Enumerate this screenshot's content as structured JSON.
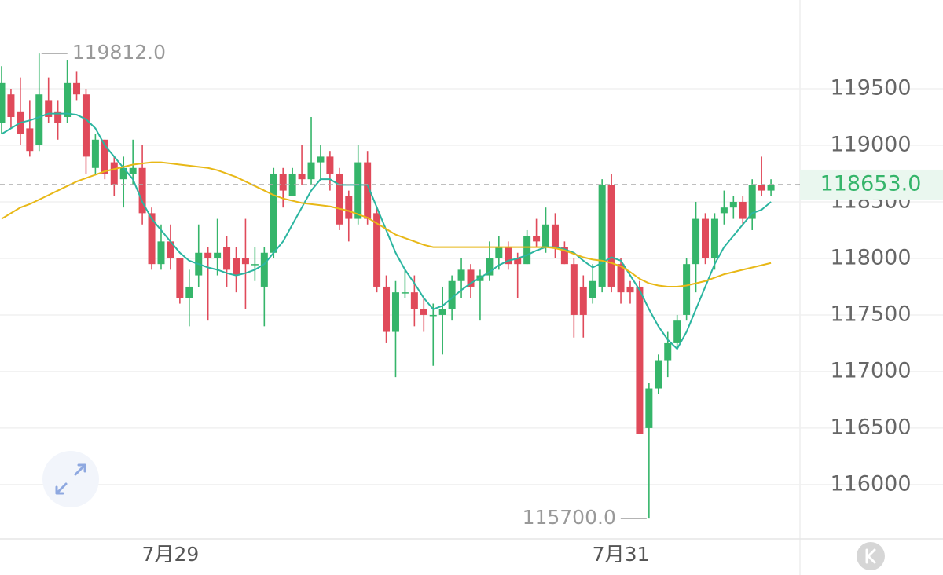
{
  "chart_data": {
    "type": "candlestick",
    "categories": [
      null,
      null,
      null,
      null,
      null,
      null,
      null,
      null,
      null,
      null,
      null,
      null,
      null,
      null,
      null,
      null,
      null,
      null,
      "7月29",
      null,
      null,
      null,
      null,
      null,
      null,
      null,
      null,
      null,
      null,
      null,
      null,
      null,
      null,
      null,
      null,
      null,
      null,
      null,
      null,
      null,
      null,
      null,
      null,
      null,
      null,
      null,
      null,
      null,
      null,
      null,
      null,
      null,
      null,
      null,
      null,
      null,
      null,
      null,
      null,
      null,
      null,
      null,
      null,
      null,
      null,
      null,
      "7月31",
      null,
      null,
      null,
      null,
      null,
      null,
      null,
      null,
      null,
      null,
      null,
      null,
      null,
      null,
      null,
      null
    ],
    "open": [
      119200,
      119450,
      119300,
      119150,
      119000,
      119400,
      119300,
      119250,
      119550,
      119450,
      118800,
      119050,
      118850,
      118700,
      118750,
      118800,
      118400,
      117950,
      118150,
      118000,
      117650,
      117850,
      118050,
      118000,
      118100,
      118000,
      118000,
      117950,
      117750,
      118050,
      118750,
      118550,
      118750,
      118700,
      118850,
      118900,
      118750,
      118550,
      118350,
      118850,
      118400,
      117750,
      117350,
      117700,
      117700,
      117550,
      117500,
      117500,
      117550,
      117800,
      117900,
      117800,
      117850,
      118000,
      118100,
      118000,
      117950,
      118200,
      118100,
      118300,
      118100,
      117950,
      117750,
      117650,
      117750,
      118650,
      117950,
      117750,
      117750,
      116500,
      116850,
      117100,
      117250,
      117500,
      117950,
      118350,
      118000,
      118400,
      118450,
      118500,
      118350,
      118650,
      118600
    ],
    "high": [
      119700,
      119500,
      119600,
      119400,
      119812,
      119600,
      119400,
      119750,
      119650,
      119500,
      119100,
      119050,
      118900,
      118900,
      119050,
      119000,
      118450,
      118300,
      118300,
      118000,
      117900,
      118300,
      118100,
      118350,
      118200,
      118100,
      118350,
      118100,
      118100,
      118800,
      118800,
      118800,
      119000,
      119250,
      119000,
      118950,
      118800,
      118600,
      119000,
      118950,
      118450,
      117850,
      117800,
      117900,
      117850,
      117650,
      117600,
      117750,
      117850,
      118000,
      117950,
      117900,
      118150,
      118200,
      118150,
      118050,
      118250,
      118350,
      118450,
      118400,
      118150,
      118000,
      117850,
      117950,
      118700,
      118750,
      118000,
      117800,
      117800,
      116900,
      117150,
      117350,
      117500,
      118000,
      118500,
      118400,
      118400,
      118600,
      118550,
      118550,
      118700,
      118900,
      118700
    ],
    "low": [
      119100,
      119150,
      119000,
      118900,
      118950,
      119200,
      119050,
      119200,
      119400,
      118750,
      118750,
      118700,
      118550,
      118450,
      118650,
      118300,
      117900,
      117900,
      117900,
      117600,
      117400,
      117750,
      117450,
      117850,
      117750,
      117700,
      117550,
      117800,
      117400,
      118000,
      118450,
      118550,
      118650,
      118650,
      118700,
      118600,
      118250,
      118150,
      118300,
      118300,
      117700,
      117250,
      116950,
      117650,
      117400,
      117350,
      117050,
      117150,
      117450,
      117650,
      117650,
      117450,
      117800,
      117900,
      117900,
      117650,
      117950,
      118100,
      118050,
      118000,
      117950,
      117300,
      117300,
      117600,
      117700,
      117700,
      117600,
      117600,
      116450,
      115700,
      116800,
      116950,
      117200,
      117450,
      117700,
      117950,
      117900,
      118300,
      118350,
      118300,
      118250,
      118550,
      118550
    ],
    "close": [
      119550,
      119250,
      119100,
      118950,
      119450,
      119250,
      119200,
      119550,
      119450,
      118900,
      119050,
      118750,
      118650,
      118800,
      118800,
      118400,
      117950,
      118150,
      118000,
      117650,
      117750,
      118050,
      118000,
      118050,
      117900,
      117850,
      117950,
      117950,
      118050,
      118750,
      118600,
      118750,
      118700,
      118850,
      118900,
      118750,
      118300,
      118350,
      118850,
      118350,
      117750,
      117350,
      117700,
      117700,
      117550,
      117500,
      117500,
      117550,
      117800,
      117900,
      117750,
      117850,
      118000,
      118100,
      117950,
      117950,
      118200,
      118150,
      118300,
      118100,
      117950,
      117500,
      117500,
      117800,
      118650,
      117750,
      117700,
      117700,
      116450,
      116850,
      117100,
      117250,
      117450,
      117950,
      118350,
      118000,
      118350,
      118450,
      118500,
      118350,
      118650,
      118600,
      118653
    ],
    "up_color": "#35b56a",
    "down_color": "#e04a5a",
    "ma_lines": [
      {
        "color": "#2bb5a0",
        "values": [
          119100,
          119150,
          119200,
          119220,
          119250,
          119280,
          119280,
          119280,
          119270,
          119230,
          119150,
          119000,
          118900,
          118800,
          118700,
          118500,
          118350,
          118250,
          118150,
          118050,
          117980,
          117950,
          117920,
          117900,
          117870,
          117850,
          117870,
          117900,
          117950,
          118050,
          118150,
          118300,
          118450,
          118600,
          118700,
          118700,
          118650,
          118650,
          118650,
          118650,
          118450,
          118250,
          118050,
          117900,
          117780,
          117650,
          117550,
          117580,
          117650,
          117720,
          117780,
          117830,
          117880,
          117940,
          117980,
          118000,
          118030,
          118070,
          118100,
          118100,
          118080,
          118050,
          117980,
          117920,
          117960,
          118010,
          117980,
          117850,
          117720,
          117550,
          117400,
          117280,
          117200,
          117350,
          117550,
          117750,
          117950,
          118100,
          118200,
          118300,
          118400,
          118430,
          118500
        ]
      },
      {
        "color": "#e8b817",
        "values": [
          118350,
          118400,
          118450,
          118480,
          118520,
          118560,
          118600,
          118640,
          118680,
          118710,
          118740,
          118770,
          118790,
          118810,
          118830,
          118840,
          118850,
          118850,
          118840,
          118830,
          118820,
          118810,
          118800,
          118780,
          118750,
          118720,
          118680,
          118640,
          118600,
          118560,
          118530,
          118510,
          118490,
          118480,
          118470,
          118460,
          118440,
          118420,
          118390,
          118360,
          118310,
          118260,
          118210,
          118180,
          118150,
          118120,
          118100,
          118100,
          118100,
          118100,
          118100,
          118100,
          118100,
          118100,
          118100,
          118100,
          118100,
          118100,
          118100,
          118090,
          118070,
          118040,
          118010,
          117990,
          117980,
          117960,
          117930,
          117880,
          117820,
          117780,
          117760,
          117750,
          117750,
          117760,
          117780,
          117800,
          117830,
          117860,
          117880,
          117900,
          117920,
          117940,
          117960
        ]
      }
    ],
    "ylim": [
      115520,
      120285
    ],
    "yticks": [
      116000,
      116500,
      117000,
      117500,
      118000,
      118500,
      119000,
      119500
    ],
    "grid": true,
    "last_price": {
      "value": 118653,
      "label": "118653.0"
    },
    "high_mark": {
      "value": 119812,
      "label": "119812.0"
    },
    "low_mark": {
      "value": 115700,
      "label": "115700.0"
    }
  }
}
